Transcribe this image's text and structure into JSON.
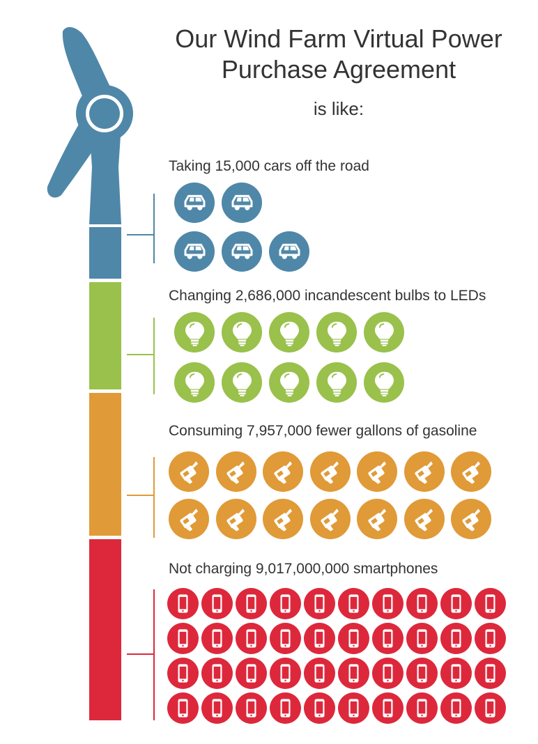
{
  "title": {
    "line1": "Our Wind Farm Virtual Power",
    "line2": "Purchase Agreement",
    "subtitle": "is like:"
  },
  "colors": {
    "blue": "#4f87a8",
    "green": "#99c14b",
    "orange": "#e09a37",
    "red": "#dd283c",
    "text": "#333333"
  },
  "sections": [
    {
      "id": "cars",
      "label": "Taking 15,000 cars off the road",
      "icon": "car-icon",
      "color": "#4f87a8",
      "rows": [
        2,
        3
      ]
    },
    {
      "id": "bulbs",
      "label": "Changing 2,686,000 incandescent bulbs to LEDs",
      "icon": "lightbulb-icon",
      "color": "#99c14b",
      "rows": [
        5,
        5
      ]
    },
    {
      "id": "gas",
      "label": "Consuming 7,957,000 fewer gallons of gasoline",
      "icon": "fuel-nozzle-icon",
      "color": "#e09a37",
      "rows": [
        7,
        7
      ]
    },
    {
      "id": "phones",
      "label": "Not charging 9,017,000,000 smartphones",
      "icon": "smartphone-icon",
      "color": "#dd283c",
      "rows": [
        10,
        10,
        10,
        10
      ]
    }
  ]
}
